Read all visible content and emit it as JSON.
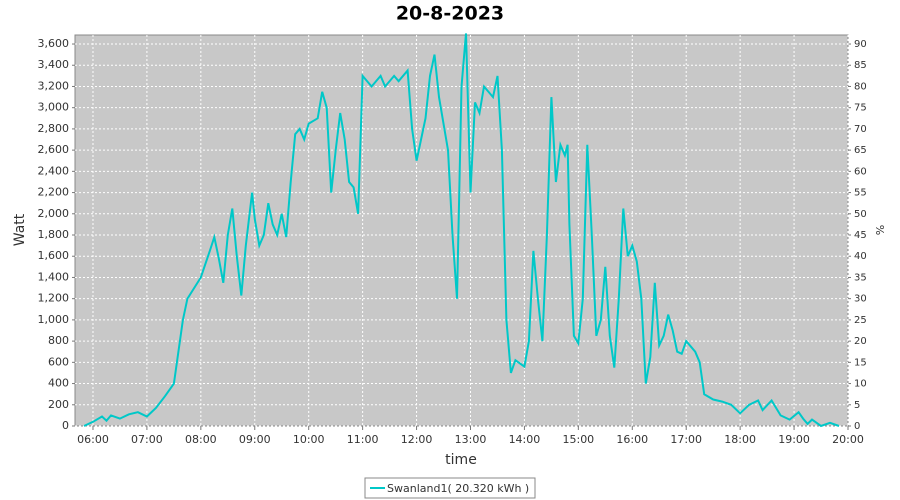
{
  "chart_data": {
    "type": "line",
    "title": "20-8-2023",
    "x_label": "time",
    "y_label": "Watt",
    "y2_label": "%",
    "x": [
      "05:50",
      "06:00",
      "06:10",
      "06:15",
      "06:20",
      "06:30",
      "06:40",
      "06:50",
      "07:00",
      "07:10",
      "07:20",
      "07:30",
      "07:40",
      "07:45",
      "08:00",
      "08:10",
      "08:15",
      "08:20",
      "08:25",
      "08:30",
      "08:35",
      "08:40",
      "08:45",
      "08:50",
      "08:57",
      "09:00",
      "09:05",
      "09:10",
      "09:15",
      "09:20",
      "09:25",
      "09:30",
      "09:35",
      "09:40",
      "09:45",
      "09:50",
      "09:55",
      "10:00",
      "10:10",
      "10:15",
      "10:20",
      "10:25",
      "10:30",
      "10:35",
      "10:40",
      "10:45",
      "10:50",
      "10:55",
      "11:00",
      "11:10",
      "11:20",
      "11:25",
      "11:35",
      "11:40",
      "11:50",
      "11:55",
      "12:00",
      "12:10",
      "12:15",
      "12:20",
      "12:25",
      "12:35",
      "12:40",
      "12:45",
      "12:50",
      "12:55",
      "13:00",
      "13:05",
      "13:10",
      "13:15",
      "13:25",
      "13:30",
      "13:35",
      "13:40",
      "13:45",
      "13:50",
      "14:00",
      "14:05",
      "14:10",
      "14:15",
      "14:20",
      "14:25",
      "14:30",
      "14:35",
      "14:40",
      "14:45",
      "14:48",
      "14:50",
      "14:55",
      "15:00",
      "15:05",
      "15:10",
      "15:15",
      "15:20",
      "15:25",
      "15:30",
      "15:35",
      "15:40",
      "15:45",
      "15:50",
      "15:55",
      "16:00",
      "16:05",
      "16:10",
      "16:15",
      "16:20",
      "16:25",
      "16:30",
      "16:35",
      "16:40",
      "16:45",
      "16:50",
      "16:55",
      "17:00",
      "17:10",
      "17:15",
      "17:20",
      "17:30",
      "17:40",
      "17:50",
      "18:00",
      "18:10",
      "18:20",
      "18:25",
      "18:35",
      "18:45",
      "18:55",
      "19:05",
      "19:10",
      "19:15",
      "19:20",
      "19:30",
      "19:40",
      "19:50"
    ],
    "series": [
      {
        "name": "Swanland1( 20.320 kWh )",
        "color": "#00c8c8",
        "values": [
          0,
          40,
          90,
          50,
          100,
          70,
          110,
          130,
          90,
          170,
          280,
          400,
          1000,
          1200,
          1400,
          1650,
          1780,
          1580,
          1350,
          1800,
          2050,
          1600,
          1230,
          1700,
          2200,
          1950,
          1700,
          1800,
          2100,
          1900,
          1800,
          2000,
          1780,
          2300,
          2750,
          2800,
          2700,
          2850,
          2900,
          3150,
          3000,
          2200,
          2600,
          2950,
          2700,
          2300,
          2250,
          2000,
          3300,
          3200,
          3300,
          3200,
          3300,
          3250,
          3350,
          2800,
          2500,
          2900,
          3300,
          3500,
          3100,
          2600,
          1800,
          1200,
          3200,
          3700,
          2200,
          3050,
          2950,
          3200,
          3100,
          3300,
          2600,
          1000,
          500,
          620,
          560,
          800,
          1650,
          1200,
          800,
          1800,
          3100,
          2300,
          2650,
          2550,
          2650,
          1900,
          850,
          780,
          1200,
          2650,
          1800,
          850,
          1000,
          1500,
          850,
          550,
          1200,
          2050,
          1600,
          1700,
          1550,
          1200,
          400,
          650,
          1350,
          760,
          850,
          1050,
          900,
          700,
          680,
          800,
          700,
          600,
          300,
          250,
          230,
          200,
          120,
          200,
          240,
          150,
          240,
          100,
          60,
          130,
          70,
          20,
          60,
          0,
          30,
          0
        ]
      }
    ],
    "xlim": [
      "05:40",
      "20:00"
    ],
    "xticks": [
      "06:00",
      "07:00",
      "08:00",
      "09:00",
      "10:00",
      "11:00",
      "12:00",
      "13:00",
      "14:00",
      "15:00",
      "16:00",
      "17:00",
      "18:00",
      "19:00",
      "20:00"
    ],
    "ylim": [
      0,
      3685
    ],
    "yticks": [
      0,
      200,
      400,
      600,
      800,
      {
        "value": 1000,
        "label": "1,000"
      },
      {
        "value": 1200,
        "label": "1,200"
      },
      {
        "value": 1400,
        "label": "1,400"
      },
      {
        "value": 1600,
        "label": "1,600"
      },
      {
        "value": 1800,
        "label": "1,800"
      },
      {
        "value": 2000,
        "label": "2,000"
      },
      {
        "value": 2200,
        "label": "2,200"
      },
      {
        "value": 2400,
        "label": "2,400"
      },
      {
        "value": 2600,
        "label": "2,600"
      },
      {
        "value": 2800,
        "label": "2,800"
      },
      {
        "value": 3000,
        "label": "3,000"
      },
      {
        "value": 3200,
        "label": "3,200"
      },
      {
        "value": 3400,
        "label": "3,400"
      },
      {
        "value": 3600,
        "label": "3,600"
      }
    ],
    "y2lim": [
      0,
      92.125
    ],
    "y2ticks": [
      0,
      5,
      10,
      15,
      20,
      25,
      30,
      35,
      40,
      45,
      50,
      55,
      60,
      65,
      70,
      75,
      80,
      85,
      90
    ],
    "grid": true,
    "legend": "bottom"
  }
}
